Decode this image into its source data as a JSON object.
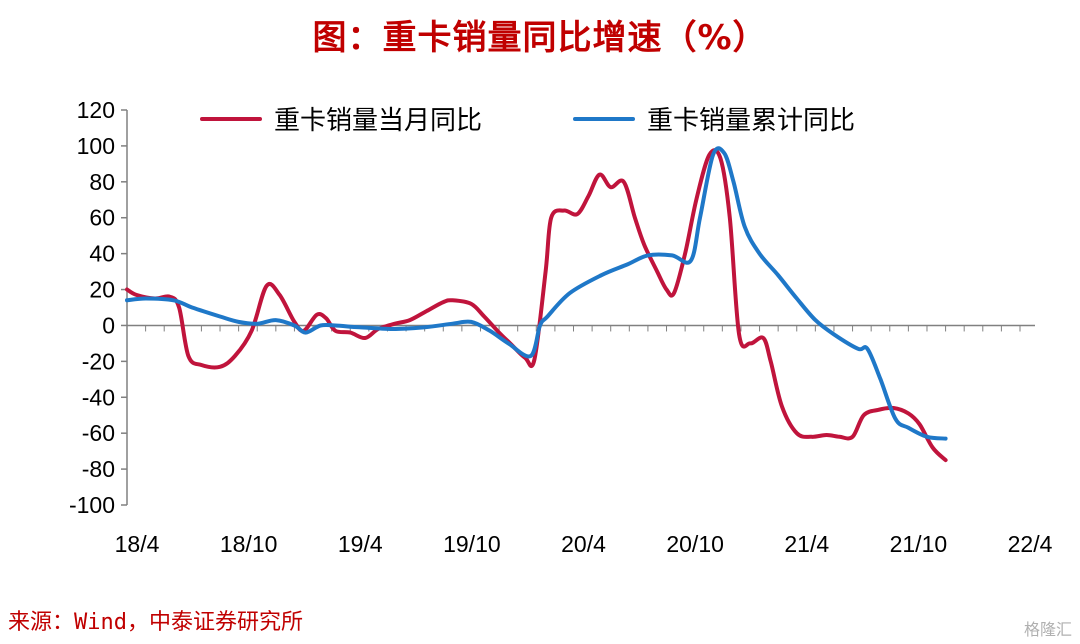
{
  "chart_data": {
    "type": "line",
    "title": "图：重卡销量同比增速（%）",
    "source": "来源：Wind，中泰证券研究所",
    "watermark": "格隆汇",
    "ylim": [
      -100,
      120
    ],
    "yticks": [
      120,
      100,
      80,
      60,
      40,
      20,
      0,
      -20,
      -40,
      -60,
      -80,
      -100
    ],
    "xlim": [
      0,
      48
    ],
    "xtick_labels": [
      {
        "label": "18/4",
        "x": 0
      },
      {
        "label": "18/10",
        "x": 6
      },
      {
        "label": "19/4",
        "x": 12
      },
      {
        "label": "19/10",
        "x": 18
      },
      {
        "label": "20/4",
        "x": 24
      },
      {
        "label": "20/10",
        "x": 30
      },
      {
        "label": "21/4",
        "x": 36
      },
      {
        "label": "21/10",
        "x": 42
      },
      {
        "label": "22/4",
        "x": 48
      }
    ],
    "legend_placement": "top",
    "series": [
      {
        "name": "重卡销量当月同比",
        "color": "#c0143c",
        "points": [
          [
            0,
            20
          ],
          [
            0.5,
            17
          ],
          [
            1.5,
            15
          ],
          [
            2.3,
            16
          ],
          [
            2.8,
            10
          ],
          [
            3.3,
            -17
          ],
          [
            4,
            -22
          ],
          [
            5,
            -23
          ],
          [
            5.8,
            -17
          ],
          [
            6.7,
            -3
          ],
          [
            7.5,
            22
          ],
          [
            8.2,
            17
          ],
          [
            9,
            2
          ],
          [
            9.5,
            -3
          ],
          [
            10.2,
            6
          ],
          [
            10.7,
            4
          ],
          [
            11.2,
            -3
          ],
          [
            12,
            -4
          ],
          [
            12.8,
            -7
          ],
          [
            13.5,
            -2
          ],
          [
            14.4,
            1
          ],
          [
            15.2,
            3
          ],
          [
            16.1,
            8
          ],
          [
            17,
            13
          ],
          [
            17.5,
            14
          ],
          [
            18.5,
            12
          ],
          [
            19.2,
            5
          ],
          [
            20,
            -4
          ],
          [
            20.6,
            -10
          ],
          [
            21.4,
            -18
          ],
          [
            21.9,
            -19
          ],
          [
            22.5,
            30
          ],
          [
            22.8,
            60
          ],
          [
            23.5,
            64
          ],
          [
            24.2,
            62
          ],
          [
            24.8,
            72
          ],
          [
            25.4,
            84
          ],
          [
            26,
            77
          ],
          [
            26.7,
            80
          ],
          [
            27.3,
            60
          ],
          [
            27.8,
            45
          ],
          [
            28.5,
            30
          ],
          [
            29,
            20
          ],
          [
            29.4,
            18
          ],
          [
            30,
            40
          ],
          [
            30.6,
            70
          ],
          [
            31.3,
            95
          ],
          [
            31.9,
            93
          ],
          [
            32.4,
            60
          ],
          [
            32.9,
            -5
          ],
          [
            33.5,
            -10
          ],
          [
            34.2,
            -7
          ],
          [
            34.6,
            -20
          ],
          [
            35.2,
            -45
          ],
          [
            36,
            -60
          ],
          [
            36.8,
            -62
          ],
          [
            37.6,
            -61
          ],
          [
            38.3,
            -62
          ],
          [
            39,
            -62
          ],
          [
            39.6,
            -50
          ],
          [
            40.4,
            -47
          ],
          [
            41.2,
            -46
          ],
          [
            42,
            -49
          ],
          [
            42.6,
            -55
          ],
          [
            43.3,
            -68
          ],
          [
            44,
            -75
          ]
        ]
      },
      {
        "name": "重卡销量累计同比",
        "color": "#1f78c8",
        "points": [
          [
            0,
            14
          ],
          [
            1,
            15
          ],
          [
            2.5,
            14
          ],
          [
            3.5,
            10
          ],
          [
            5,
            5
          ],
          [
            6,
            2
          ],
          [
            7,
            1
          ],
          [
            8,
            3
          ],
          [
            9,
            0
          ],
          [
            9.6,
            -4
          ],
          [
            10.4,
            0
          ],
          [
            11.2,
            0
          ],
          [
            12.5,
            -1
          ],
          [
            14.3,
            -2
          ],
          [
            16,
            -1
          ],
          [
            17.5,
            1
          ],
          [
            18.5,
            2
          ],
          [
            19.5,
            -3
          ],
          [
            20.5,
            -10
          ],
          [
            21.7,
            -17
          ],
          [
            22.2,
            0
          ],
          [
            22.6,
            5
          ],
          [
            23.8,
            18
          ],
          [
            25.5,
            28
          ],
          [
            26.9,
            34
          ],
          [
            28,
            39
          ],
          [
            29.3,
            39
          ],
          [
            30.3,
            36
          ],
          [
            30.8,
            60
          ],
          [
            31.5,
            95
          ],
          [
            32.1,
            96
          ],
          [
            32.6,
            80
          ],
          [
            33.2,
            55
          ],
          [
            34,
            40
          ],
          [
            35,
            28
          ],
          [
            36,
            15
          ],
          [
            37,
            3
          ],
          [
            38,
            -5
          ],
          [
            39.3,
            -13
          ],
          [
            39.8,
            -13
          ],
          [
            40.5,
            -30
          ],
          [
            41.3,
            -52
          ],
          [
            42,
            -57
          ],
          [
            43,
            -62
          ],
          [
            44,
            -63
          ]
        ]
      }
    ]
  }
}
